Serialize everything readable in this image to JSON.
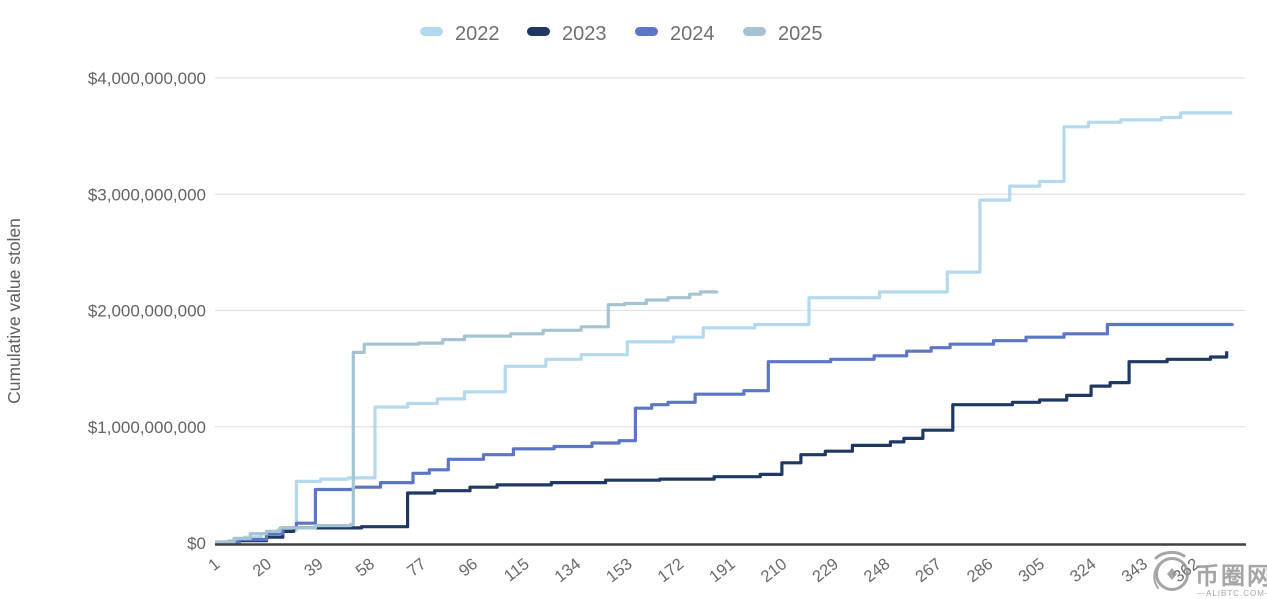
{
  "chart_data": {
    "type": "line",
    "subtype": "step-after-cumulative",
    "title": "",
    "xlabel": "",
    "ylabel": "Cumulative value stolen",
    "values_unit": "USD billions",
    "grid": "horizontal-only",
    "legend_position": "top-center",
    "x_domain": [
      1,
      380
    ],
    "y_domain_billions": [
      0,
      4.155
    ],
    "x_tick_labels": [
      "1",
      "20",
      "39",
      "58",
      "77",
      "96",
      "115",
      "134",
      "153",
      "172",
      "191",
      "210",
      "229",
      "248",
      "267",
      "286",
      "305",
      "324",
      "343",
      "362"
    ],
    "x_tick_values": [
      1,
      20,
      39,
      58,
      77,
      96,
      115,
      134,
      153,
      172,
      191,
      210,
      229,
      248,
      267,
      286,
      305,
      324,
      343,
      362
    ],
    "y_ticks": [
      {
        "value": 0,
        "label": "$0"
      },
      {
        "value": 1,
        "label": "$1,000,000,000"
      },
      {
        "value": 2,
        "label": "$2,000,000,000"
      },
      {
        "value": 3,
        "label": "$3,000,000,000"
      },
      {
        "value": 4,
        "label": "$4,000,000,000"
      }
    ],
    "legend": [
      {
        "label": "2022",
        "color": "#b4d9ee"
      },
      {
        "label": "2023",
        "color": "#1f3864"
      },
      {
        "label": "2024",
        "color": "#5b76c4"
      },
      {
        "label": "2025",
        "color": "#a5c3d1"
      }
    ],
    "series": [
      {
        "name": "2022",
        "color": "#b4d9ee",
        "points": [
          [
            1,
            0.005
          ],
          [
            6,
            0.02
          ],
          [
            12,
            0.05
          ],
          [
            18,
            0.08
          ],
          [
            24,
            0.11
          ],
          [
            31,
            0.53
          ],
          [
            40,
            0.55
          ],
          [
            50,
            0.56
          ],
          [
            60,
            1.17
          ],
          [
            72,
            1.2
          ],
          [
            83,
            1.24
          ],
          [
            93,
            1.3
          ],
          [
            108,
            1.52
          ],
          [
            123,
            1.58
          ],
          [
            136,
            1.62
          ],
          [
            153,
            1.73
          ],
          [
            170,
            1.77
          ],
          [
            181,
            1.85
          ],
          [
            200,
            1.88
          ],
          [
            220,
            2.11
          ],
          [
            246,
            2.16
          ],
          [
            271,
            2.33
          ],
          [
            283,
            2.95
          ],
          [
            294,
            3.07
          ],
          [
            305,
            3.11
          ],
          [
            314,
            3.58
          ],
          [
            323,
            3.62
          ],
          [
            335,
            3.64
          ],
          [
            350,
            3.66
          ],
          [
            357,
            3.7
          ],
          [
            376,
            3.7
          ]
        ]
      },
      {
        "name": "2023",
        "color": "#1f3864",
        "points": [
          [
            1,
            0.005
          ],
          [
            10,
            0.02
          ],
          [
            20,
            0.05
          ],
          [
            26,
            0.1
          ],
          [
            30,
            0.13
          ],
          [
            55,
            0.14
          ],
          [
            72,
            0.43
          ],
          [
            82,
            0.45
          ],
          [
            95,
            0.48
          ],
          [
            105,
            0.5
          ],
          [
            125,
            0.52
          ],
          [
            145,
            0.54
          ],
          [
            165,
            0.55
          ],
          [
            185,
            0.57
          ],
          [
            202,
            0.59
          ],
          [
            210,
            0.69
          ],
          [
            217,
            0.76
          ],
          [
            226,
            0.79
          ],
          [
            236,
            0.84
          ],
          [
            250,
            0.87
          ],
          [
            255,
            0.9
          ],
          [
            262,
            0.97
          ],
          [
            273,
            1.19
          ],
          [
            295,
            1.21
          ],
          [
            305,
            1.23
          ],
          [
            315,
            1.27
          ],
          [
            324,
            1.35
          ],
          [
            331,
            1.38
          ],
          [
            338,
            1.56
          ],
          [
            352,
            1.58
          ],
          [
            368,
            1.6
          ],
          [
            374,
            1.65
          ]
        ]
      },
      {
        "name": "2024",
        "color": "#5b76c4",
        "points": [
          [
            1,
            0.005
          ],
          [
            10,
            0.03
          ],
          [
            20,
            0.08
          ],
          [
            26,
            0.13
          ],
          [
            31,
            0.17
          ],
          [
            38,
            0.46
          ],
          [
            52,
            0.48
          ],
          [
            62,
            0.52
          ],
          [
            74,
            0.6
          ],
          [
            80,
            0.63
          ],
          [
            87,
            0.72
          ],
          [
            100,
            0.76
          ],
          [
            111,
            0.81
          ],
          [
            126,
            0.83
          ],
          [
            140,
            0.86
          ],
          [
            150,
            0.88
          ],
          [
            156,
            1.16
          ],
          [
            162,
            1.19
          ],
          [
            168,
            1.21
          ],
          [
            178,
            1.28
          ],
          [
            196,
            1.31
          ],
          [
            205,
            1.56
          ],
          [
            228,
            1.58
          ],
          [
            244,
            1.61
          ],
          [
            256,
            1.65
          ],
          [
            265,
            1.68
          ],
          [
            272,
            1.71
          ],
          [
            288,
            1.74
          ],
          [
            300,
            1.77
          ],
          [
            314,
            1.8
          ],
          [
            330,
            1.88
          ],
          [
            376,
            1.89
          ]
        ]
      },
      {
        "name": "2025",
        "color": "#a5c3d1",
        "points": [
          [
            1,
            0.005
          ],
          [
            8,
            0.04
          ],
          [
            14,
            0.08
          ],
          [
            20,
            0.1
          ],
          [
            25,
            0.13
          ],
          [
            38,
            0.15
          ],
          [
            51,
            0.16
          ],
          [
            52,
            1.64
          ],
          [
            56,
            1.71
          ],
          [
            76,
            1.72
          ],
          [
            85,
            1.75
          ],
          [
            93,
            1.78
          ],
          [
            110,
            1.8
          ],
          [
            122,
            1.83
          ],
          [
            136,
            1.86
          ],
          [
            146,
            2.05
          ],
          [
            152,
            2.06
          ],
          [
            160,
            2.09
          ],
          [
            168,
            2.11
          ],
          [
            176,
            2.14
          ],
          [
            180,
            2.16
          ],
          [
            186,
            2.17
          ]
        ]
      }
    ]
  },
  "watermark": {
    "site_name_cn": "币圈网",
    "site_domain": "—ALIBTC.COM—"
  }
}
